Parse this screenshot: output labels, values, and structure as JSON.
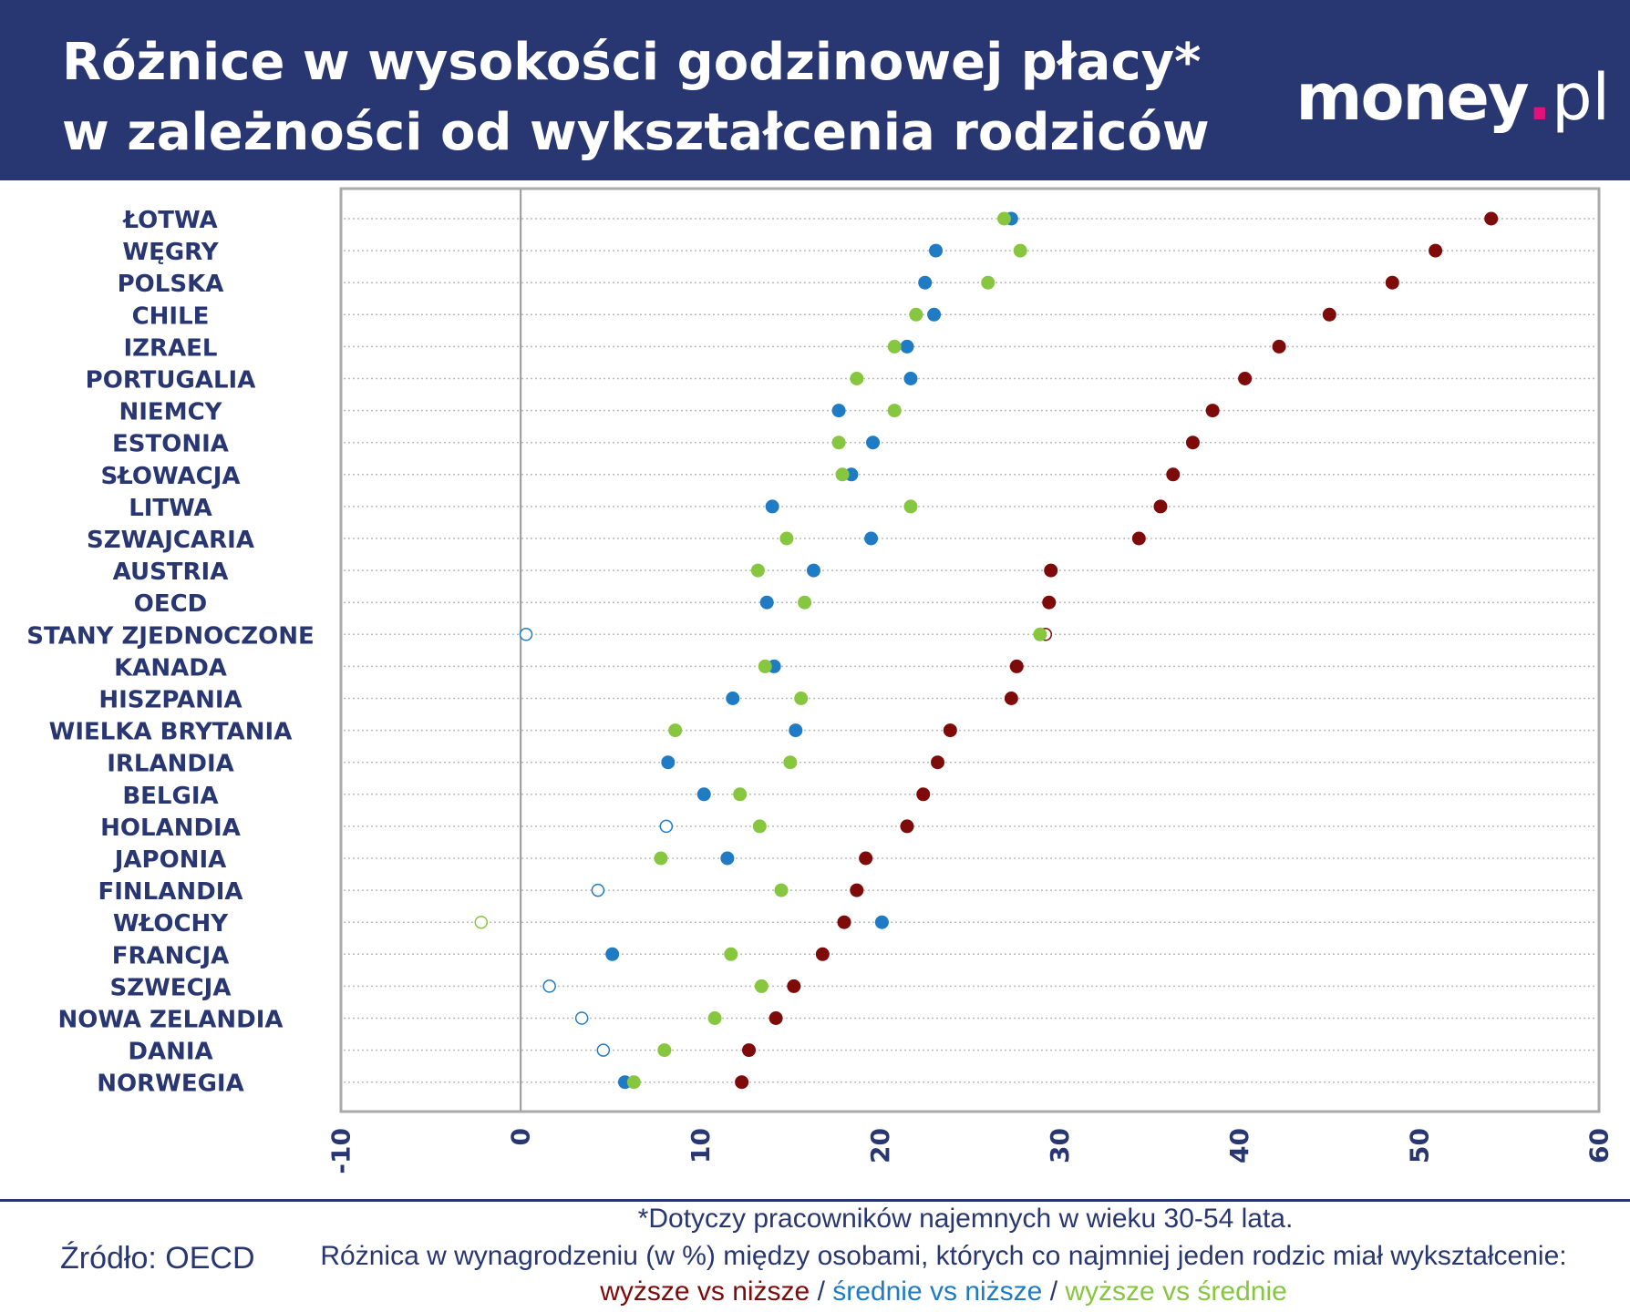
{
  "header": {
    "title_line1": "Różnice w wysokości godzinowej płacy*",
    "title_line2": "w zależności od wykształcenia rodziców",
    "logo_main": "money",
    "logo_dot": ".",
    "logo_suffix": "pl"
  },
  "colors": {
    "header_bg": "#283671",
    "label": "#283671",
    "higher_vs_lower": "#7e0a0a",
    "secondary_vs_lower": "#1f7cc4",
    "higher_vs_secondary": "#87c63f",
    "logo_accent": "#e3127a"
  },
  "chart_data": {
    "type": "scatter",
    "orientation": "horizontal dot plot",
    "xlim": [
      -10,
      60
    ],
    "x_ticks": [
      "-10",
      "0",
      "10",
      "20",
      "30",
      "40",
      "50",
      "60"
    ],
    "categories": [
      "ŁOTWA",
      "WĘGRY",
      "POLSKA",
      "CHILE",
      "IZRAEL",
      "PORTUGALIA",
      "NIEMCY",
      "ESTONIA",
      "SŁOWACJA",
      "LITWA",
      "SZWAJCARIA",
      "AUSTRIA",
      "OECD",
      "STANY ZJEDNOCZONE",
      "KANADA",
      "HISZPANIA",
      "WIELKA BRYTANIA",
      "IRLANDIA",
      "BELGIA",
      "HOLANDIA",
      "JAPONIA",
      "FINLANDIA",
      "WŁOCHY",
      "FRANCJA",
      "SZWECJA",
      "NOWA ZELANDIA",
      "DANIA",
      "NORWEGIA"
    ],
    "series": [
      {
        "name": "wyższe vs niższe",
        "color": "#7e0a0a",
        "values": [
          54.0,
          50.9,
          48.5,
          45.0,
          42.2,
          40.3,
          38.5,
          37.4,
          36.3,
          35.6,
          34.4,
          29.5,
          29.4,
          29.2,
          27.6,
          27.3,
          23.9,
          23.2,
          22.4,
          21.5,
          19.2,
          18.7,
          18.0,
          16.8,
          15.2,
          14.2,
          12.7,
          12.3
        ],
        "hollow": [
          false,
          false,
          false,
          false,
          false,
          false,
          false,
          false,
          false,
          false,
          false,
          false,
          false,
          true,
          false,
          false,
          false,
          false,
          false,
          false,
          false,
          false,
          false,
          false,
          false,
          false,
          false,
          false
        ]
      },
      {
        "name": "średnie vs niższe",
        "color": "#1f7cc4",
        "values": [
          27.3,
          23.1,
          22.5,
          23.0,
          21.5,
          21.7,
          17.7,
          19.6,
          18.4,
          14.0,
          19.5,
          16.3,
          13.7,
          0.3,
          14.1,
          11.8,
          15.3,
          8.2,
          10.2,
          8.1,
          11.5,
          4.3,
          20.1,
          5.1,
          1.6,
          3.4,
          4.6,
          5.8
        ],
        "hollow": [
          false,
          false,
          false,
          false,
          false,
          false,
          false,
          false,
          false,
          false,
          false,
          false,
          false,
          true,
          false,
          false,
          false,
          false,
          false,
          true,
          false,
          true,
          false,
          false,
          true,
          true,
          true,
          false
        ]
      },
      {
        "name": "wyższe vs średnie",
        "color": "#87c63f",
        "values": [
          26.9,
          27.8,
          26.0,
          22.0,
          20.8,
          18.7,
          20.8,
          17.7,
          17.9,
          21.7,
          14.8,
          13.2,
          15.8,
          28.9,
          13.6,
          15.6,
          8.6,
          15.0,
          12.2,
          13.3,
          7.8,
          14.5,
          -2.2,
          11.7,
          13.4,
          10.8,
          8.0,
          6.3
        ],
        "hollow": [
          false,
          false,
          false,
          false,
          false,
          false,
          false,
          false,
          false,
          false,
          false,
          false,
          false,
          false,
          false,
          false,
          false,
          false,
          false,
          false,
          false,
          false,
          true,
          false,
          false,
          false,
          false,
          false
        ]
      }
    ]
  },
  "footer": {
    "source": "Źródło: OECD",
    "note1": "*Dotyczy pracowników najemnych w wieku 30-54 lata.",
    "note2": "Różnica w wynagrodzeniu (w %) między osobami, których co najmniej jeden rodzic miał wykształcenie:",
    "legend_red": "wyższe vs niższe",
    "legend_sep1": " / ",
    "legend_blue": "średnie vs niższe",
    "legend_sep2": " / ",
    "legend_green": "wyższe vs średnie"
  }
}
